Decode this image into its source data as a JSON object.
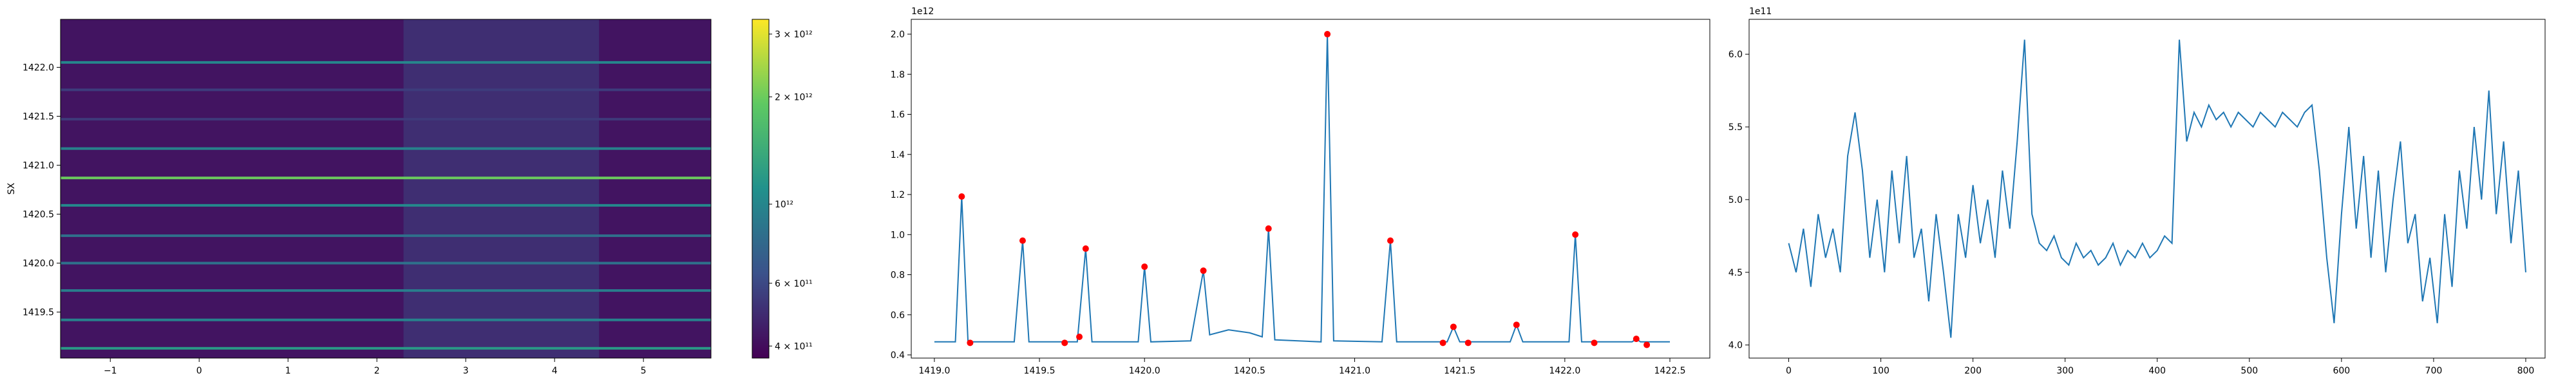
{
  "chart_data": [
    {
      "type": "heatmap",
      "ylabel": "SX",
      "xlim": [
        -1.56,
        5.76
      ],
      "ylim": [
        1419.03,
        1422.49
      ],
      "xticks": [
        {
          "value": -1,
          "label": "−1"
        },
        0,
        1,
        2,
        3,
        4,
        5
      ],
      "yticks": [
        {
          "value": 1419.5,
          "label": "1419.5"
        },
        {
          "value": 1420.0,
          "label": "1420.0"
        },
        {
          "value": 1420.5,
          "label": "1420.5"
        },
        {
          "value": 1421.0,
          "label": "1421.0"
        },
        {
          "value": 1421.5,
          "label": "1421.5"
        },
        {
          "value": 1422.0,
          "label": "1422.0"
        }
      ],
      "background_value": 420000000000,
      "band": {
        "x": [
          2.3,
          4.5
        ],
        "value": 500000000000
      },
      "lines": {
        "y": [
          1419.13,
          1419.42,
          1419.72,
          1420.0,
          1420.28,
          1420.59,
          1420.87,
          1421.17,
          1421.47,
          1421.77,
          1422.05
        ],
        "values": [
          1190000000000,
          970000000000,
          930000000000,
          840000000000,
          820000000000,
          1030000000000,
          2000000000000,
          970000000000,
          540000000000,
          550000000000,
          1000000000000
        ]
      },
      "clim": [
        370000000000,
        3300000000000
      ],
      "log": true,
      "cticks": [
        {
          "value": 400000000000,
          "label": "4 × 10¹¹"
        },
        {
          "value": 600000000000,
          "label": "6 × 10¹¹"
        },
        {
          "value": 1000000000000,
          "label": "10¹²"
        },
        {
          "value": 2000000000000,
          "label": "2 × 10¹²"
        },
        {
          "value": 3000000000000,
          "label": "3 × 10¹²"
        }
      ]
    },
    {
      "type": "line",
      "offset_label": "1e12",
      "color": "#1f77b4",
      "xlim": [
        1418.89,
        1422.69
      ],
      "ylim": [
        0.384,
        2.074
      ],
      "xticks": [
        {
          "value": 1419.0,
          "label": "1419.0"
        },
        1419.5,
        {
          "value": 1420.0,
          "label": "1420.0"
        },
        1420.5,
        {
          "value": 1421.0,
          "label": "1421.0"
        },
        1421.5,
        {
          "value": 1422.0,
          "label": "1422.0"
        },
        1422.5
      ],
      "yticks": [
        0.4,
        0.6,
        0.8,
        {
          "value": 1.0,
          "label": "1.0"
        },
        1.2,
        1.4,
        1.6,
        1.8,
        {
          "value": 2.0,
          "label": "2.0"
        }
      ],
      "x": [
        1419.0,
        1419.1,
        1419.13,
        1419.16,
        1419.38,
        1419.42,
        1419.45,
        1419.68,
        1419.72,
        1419.75,
        1419.97,
        1420.0,
        1420.03,
        1420.22,
        1420.28,
        1420.31,
        1420.4,
        1420.5,
        1420.56,
        1420.59,
        1420.62,
        1420.84,
        1420.87,
        1420.9,
        1421.13,
        1421.17,
        1421.2,
        1421.44,
        1421.47,
        1421.5,
        1421.74,
        1421.77,
        1421.8,
        1422.02,
        1422.05,
        1422.08,
        1422.32,
        1422.34,
        1422.36,
        1422.5
      ],
      "values": [
        0.465,
        0.465,
        1.19,
        0.465,
        0.465,
        0.97,
        0.465,
        0.465,
        0.93,
        0.465,
        0.465,
        0.84,
        0.465,
        0.47,
        0.82,
        0.5,
        0.525,
        0.51,
        0.49,
        1.03,
        0.475,
        0.465,
        2.0,
        0.47,
        0.465,
        0.97,
        0.465,
        0.465,
        0.54,
        0.465,
        0.465,
        0.55,
        0.465,
        0.465,
        1.0,
        0.465,
        0.465,
        0.48,
        0.465,
        0.465
      ],
      "peaks": {
        "color": "#ff0000",
        "x": [
          1419.13,
          1419.17,
          1419.42,
          1419.62,
          1419.69,
          1419.72,
          1420.0,
          1420.28,
          1420.59,
          1420.87,
          1421.17,
          1421.42,
          1421.47,
          1421.54,
          1421.77,
          1422.05,
          1422.14,
          1422.34,
          1422.39
        ],
        "values": [
          1.19,
          0.46,
          0.97,
          0.46,
          0.49,
          0.93,
          0.84,
          0.82,
          1.03,
          2.0,
          0.97,
          0.46,
          0.54,
          0.46,
          0.55,
          1.0,
          0.46,
          0.48,
          0.45
        ]
      }
    },
    {
      "type": "line",
      "offset_label": "1e11",
      "color": "#1f77b4",
      "xlim": [
        -43,
        821
      ],
      "ylim": [
        3.91,
        6.24
      ],
      "xticks": [
        0,
        100,
        200,
        300,
        400,
        500,
        600,
        700,
        800
      ],
      "yticks": [
        {
          "value": 4.0,
          "label": "4.0"
        },
        4.5,
        {
          "value": 5.0,
          "label": "5.0"
        },
        5.5,
        {
          "value": 6.0,
          "label": "6.0"
        }
      ],
      "x": [
        0,
        8,
        16,
        24,
        32,
        40,
        48,
        56,
        64,
        72,
        80,
        88,
        96,
        104,
        112,
        120,
        128,
        136,
        144,
        152,
        160,
        168,
        176,
        184,
        192,
        200,
        208,
        216,
        224,
        232,
        240,
        248,
        256,
        264,
        272,
        280,
        288,
        296,
        304,
        312,
        320,
        328,
        336,
        344,
        352,
        360,
        368,
        376,
        384,
        392,
        400,
        408,
        416,
        424,
        432,
        440,
        448,
        456,
        464,
        472,
        480,
        488,
        496,
        504,
        512,
        520,
        528,
        536,
        544,
        552,
        560,
        568,
        576,
        584,
        592,
        600,
        608,
        616,
        624,
        632,
        640,
        648,
        656,
        664,
        672,
        680,
        688,
        696,
        704,
        712,
        720,
        728,
        736,
        744,
        752,
        760,
        768,
        776,
        784,
        792,
        800
      ],
      "values": [
        4.7,
        4.5,
        4.8,
        4.4,
        4.9,
        4.6,
        4.8,
        4.5,
        5.3,
        5.6,
        5.2,
        4.6,
        5.0,
        4.5,
        5.2,
        4.7,
        5.3,
        4.6,
        4.8,
        4.3,
        4.9,
        4.5,
        4.05,
        4.9,
        4.6,
        5.1,
        4.7,
        5.0,
        4.6,
        5.2,
        4.8,
        5.4,
        6.1,
        4.9,
        4.7,
        4.65,
        4.75,
        4.6,
        4.55,
        4.7,
        4.6,
        4.65,
        4.55,
        4.6,
        4.7,
        4.55,
        4.65,
        4.6,
        4.7,
        4.6,
        4.65,
        4.75,
        4.7,
        6.1,
        5.4,
        5.6,
        5.5,
        5.65,
        5.55,
        5.6,
        5.5,
        5.6,
        5.55,
        5.5,
        5.6,
        5.55,
        5.5,
        5.6,
        5.55,
        5.5,
        5.6,
        5.65,
        5.2,
        4.6,
        4.15,
        4.9,
        5.5,
        4.8,
        5.3,
        4.6,
        5.2,
        4.5,
        5.0,
        5.4,
        4.7,
        4.9,
        4.3,
        4.6,
        4.15,
        4.9,
        4.4,
        5.2,
        4.8,
        5.5,
        5.0,
        5.75,
        4.9,
        5.4,
        4.7,
        5.2,
        4.5
      ]
    }
  ]
}
